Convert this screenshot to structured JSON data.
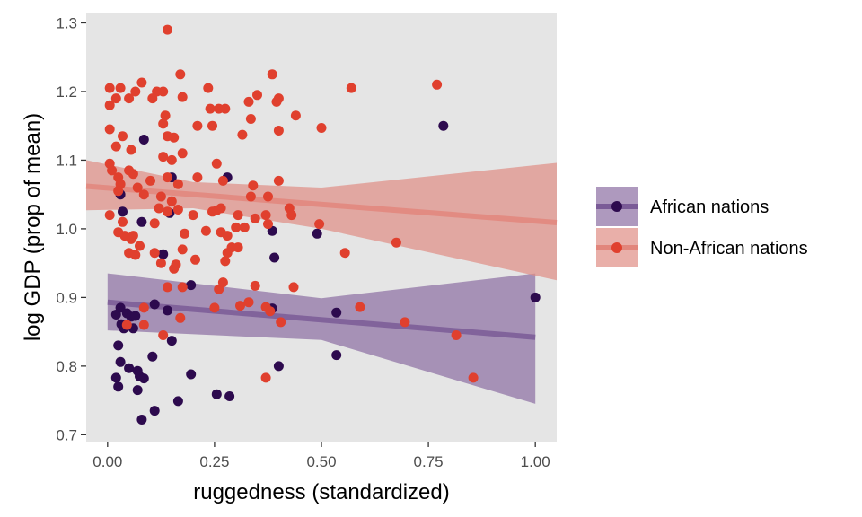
{
  "chart_data": {
    "type": "scatter",
    "xlabel": "ruggedness (standardized)",
    "ylabel": "log GDP (prop of mean)",
    "xlim": [
      -0.05,
      1.05
    ],
    "ylim": [
      0.69,
      1.315
    ],
    "x_ticks": [
      0.0,
      0.25,
      0.5,
      0.75,
      1.0
    ],
    "x_tick_labels": [
      "0.00",
      "0.25",
      "0.50",
      "0.75",
      "1.00"
    ],
    "y_ticks": [
      0.7,
      0.8,
      0.9,
      1.0,
      1.1,
      1.2,
      1.3
    ],
    "y_tick_labels": [
      "0.7",
      "0.8",
      "0.9",
      "1.0",
      "1.1",
      "1.2",
      "1.3"
    ],
    "grid": false,
    "background": "#e5e5e5",
    "legend_position": "right",
    "series": [
      {
        "name": "African nations",
        "color": "#2d0a4e",
        "ribbon_color": "#8c6ea3",
        "line_color": "#7a5b97",
        "fit": {
          "x": [
            0.0,
            1.0
          ],
          "y": [
            0.893,
            0.842
          ]
        },
        "band": {
          "x": [
            0.0,
            0.5,
            1.0
          ],
          "lower": [
            0.852,
            0.838,
            0.745
          ],
          "upper": [
            0.935,
            0.899,
            0.935
          ]
        },
        "points": [
          [
            0.085,
            1.13
          ],
          [
            0.785,
            1.15
          ],
          [
            0.28,
            1.075
          ],
          [
            0.15,
            1.075
          ],
          [
            0.03,
            1.05
          ],
          [
            0.035,
            1.025
          ],
          [
            0.08,
            1.01
          ],
          [
            0.145,
            1.023
          ],
          [
            0.385,
            0.997
          ],
          [
            0.49,
            0.993
          ],
          [
            0.13,
            0.963
          ],
          [
            0.39,
            0.958
          ],
          [
            0.195,
            0.918
          ],
          [
            1.0,
            0.9
          ],
          [
            0.02,
            0.875
          ],
          [
            0.03,
            0.885
          ],
          [
            0.045,
            0.877
          ],
          [
            0.055,
            0.872
          ],
          [
            0.065,
            0.873
          ],
          [
            0.11,
            0.89
          ],
          [
            0.14,
            0.881
          ],
          [
            0.385,
            0.884
          ],
          [
            0.535,
            0.878
          ],
          [
            0.032,
            0.861
          ],
          [
            0.038,
            0.855
          ],
          [
            0.06,
            0.855
          ],
          [
            0.025,
            0.83
          ],
          [
            0.15,
            0.837
          ],
          [
            0.03,
            0.806
          ],
          [
            0.05,
            0.797
          ],
          [
            0.07,
            0.793
          ],
          [
            0.105,
            0.814
          ],
          [
            0.4,
            0.8
          ],
          [
            0.535,
            0.816
          ],
          [
            0.195,
            0.788
          ],
          [
            0.02,
            0.783
          ],
          [
            0.075,
            0.785
          ],
          [
            0.085,
            0.782
          ],
          [
            0.025,
            0.77
          ],
          [
            0.07,
            0.765
          ],
          [
            0.165,
            0.749
          ],
          [
            0.255,
            0.759
          ],
          [
            0.285,
            0.756
          ],
          [
            0.11,
            0.735
          ],
          [
            0.08,
            0.722
          ]
        ]
      },
      {
        "name": "Non-African nations",
        "color": "#e0402e",
        "ribbon_color": "#e08d84",
        "line_color": "#e2867c",
        "fit": {
          "x": [
            -0.05,
            1.05
          ],
          "y": [
            1.062,
            1.009
          ]
        },
        "band": {
          "x": [
            -0.05,
            0.2,
            0.5,
            1.05
          ],
          "lower": [
            1.027,
            1.03,
            1.0,
            0.925
          ],
          "upper": [
            1.1,
            1.068,
            1.06,
            1.096
          ]
        },
        "points": [
          [
            0.14,
            1.29
          ],
          [
            0.17,
            1.225
          ],
          [
            0.385,
            1.225
          ],
          [
            0.57,
            1.205
          ],
          [
            0.77,
            1.21
          ],
          [
            0.005,
            1.205
          ],
          [
            0.03,
            1.205
          ],
          [
            0.065,
            1.2
          ],
          [
            0.08,
            1.213
          ],
          [
            0.115,
            1.2
          ],
          [
            0.13,
            1.2
          ],
          [
            0.105,
            1.19
          ],
          [
            0.02,
            1.19
          ],
          [
            0.05,
            1.19
          ],
          [
            0.175,
            1.192
          ],
          [
            0.235,
            1.205
          ],
          [
            0.35,
            1.195
          ],
          [
            0.4,
            1.19
          ],
          [
            0.005,
            1.18
          ],
          [
            0.24,
            1.175
          ],
          [
            0.26,
            1.175
          ],
          [
            0.275,
            1.175
          ],
          [
            0.33,
            1.185
          ],
          [
            0.395,
            1.185
          ],
          [
            0.135,
            1.165
          ],
          [
            0.335,
            1.16
          ],
          [
            0.44,
            1.165
          ],
          [
            0.005,
            1.145
          ],
          [
            0.035,
            1.135
          ],
          [
            0.13,
            1.153
          ],
          [
            0.21,
            1.15
          ],
          [
            0.245,
            1.15
          ],
          [
            0.4,
            1.143
          ],
          [
            0.5,
            1.147
          ],
          [
            0.14,
            1.135
          ],
          [
            0.155,
            1.133
          ],
          [
            0.315,
            1.137
          ],
          [
            0.02,
            1.12
          ],
          [
            0.055,
            1.115
          ],
          [
            0.13,
            1.105
          ],
          [
            0.15,
            1.1
          ],
          [
            0.175,
            1.11
          ],
          [
            0.255,
            1.095
          ],
          [
            0.005,
            1.095
          ],
          [
            0.01,
            1.085
          ],
          [
            0.025,
            1.075
          ],
          [
            0.05,
            1.085
          ],
          [
            0.06,
            1.08
          ],
          [
            0.1,
            1.07
          ],
          [
            0.14,
            1.075
          ],
          [
            0.165,
            1.065
          ],
          [
            0.21,
            1.075
          ],
          [
            0.27,
            1.07
          ],
          [
            0.34,
            1.063
          ],
          [
            0.4,
            1.07
          ],
          [
            0.03,
            1.065
          ],
          [
            0.025,
            1.055
          ],
          [
            0.07,
            1.06
          ],
          [
            0.085,
            1.05
          ],
          [
            0.125,
            1.047
          ],
          [
            0.15,
            1.04
          ],
          [
            0.335,
            1.047
          ],
          [
            0.375,
            1.047
          ],
          [
            0.005,
            1.02
          ],
          [
            0.12,
            1.03
          ],
          [
            0.14,
            1.025
          ],
          [
            0.165,
            1.028
          ],
          [
            0.2,
            1.02
          ],
          [
            0.245,
            1.025
          ],
          [
            0.255,
            1.027
          ],
          [
            0.265,
            1.03
          ],
          [
            0.305,
            1.02
          ],
          [
            0.345,
            1.015
          ],
          [
            0.37,
            1.02
          ],
          [
            0.425,
            1.03
          ],
          [
            0.43,
            1.02
          ],
          [
            0.035,
            1.01
          ],
          [
            0.11,
            1.008
          ],
          [
            0.025,
            0.995
          ],
          [
            0.04,
            0.99
          ],
          [
            0.055,
            0.985
          ],
          [
            0.06,
            0.99
          ],
          [
            0.18,
            0.993
          ],
          [
            0.23,
            0.997
          ],
          [
            0.265,
            0.995
          ],
          [
            0.28,
            0.99
          ],
          [
            0.3,
            1.002
          ],
          [
            0.32,
            1.002
          ],
          [
            0.375,
            1.007
          ],
          [
            0.495,
            1.007
          ],
          [
            0.075,
            0.975
          ],
          [
            0.29,
            0.973
          ],
          [
            0.305,
            0.973
          ],
          [
            0.05,
            0.965
          ],
          [
            0.065,
            0.962
          ],
          [
            0.11,
            0.965
          ],
          [
            0.175,
            0.97
          ],
          [
            0.28,
            0.965
          ],
          [
            0.555,
            0.965
          ],
          [
            0.675,
            0.98
          ],
          [
            0.125,
            0.95
          ],
          [
            0.16,
            0.948
          ],
          [
            0.155,
            0.942
          ],
          [
            0.205,
            0.955
          ],
          [
            0.275,
            0.953
          ],
          [
            0.14,
            0.915
          ],
          [
            0.175,
            0.915
          ],
          [
            0.26,
            0.912
          ],
          [
            0.27,
            0.922
          ],
          [
            0.345,
            0.917
          ],
          [
            0.435,
            0.915
          ],
          [
            0.33,
            0.893
          ],
          [
            0.31,
            0.888
          ],
          [
            0.25,
            0.885
          ],
          [
            0.37,
            0.886
          ],
          [
            0.38,
            0.88
          ],
          [
            0.59,
            0.886
          ],
          [
            0.085,
            0.885
          ],
          [
            0.17,
            0.87
          ],
          [
            0.405,
            0.864
          ],
          [
            0.045,
            0.86
          ],
          [
            0.085,
            0.86
          ],
          [
            0.695,
            0.864
          ],
          [
            0.13,
            0.845
          ],
          [
            0.815,
            0.845
          ],
          [
            0.37,
            0.783
          ],
          [
            0.855,
            0.783
          ]
        ]
      }
    ]
  }
}
